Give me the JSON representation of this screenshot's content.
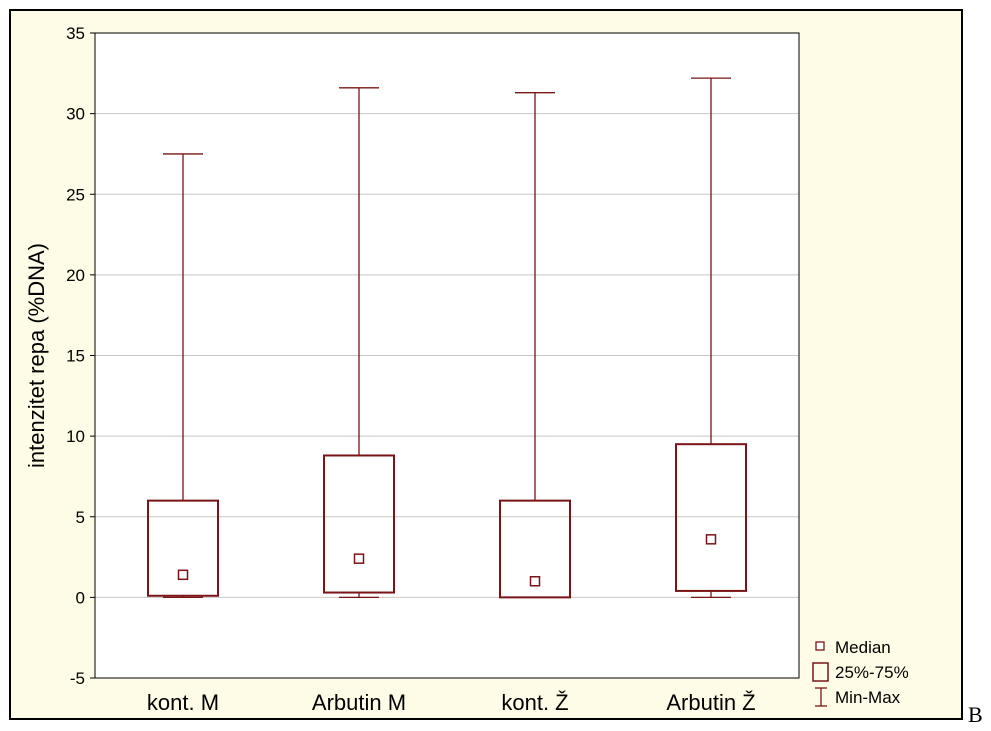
{
  "panel_letter": "B",
  "colors": {
    "box_stroke": "#7b1416",
    "axis": "#000000",
    "grid": "#c8c8c8",
    "frame_bg": "#fefce6",
    "plot_bg": "#ffffff"
  },
  "chart_data": {
    "type": "boxplot",
    "ylabel": "intenzitet repa (%DNA)",
    "xlabel": "",
    "ylim": [
      -5,
      35
    ],
    "yticks": [
      -5,
      0,
      5,
      10,
      15,
      20,
      25,
      30,
      35
    ],
    "grid": true,
    "categories": [
      "kont. M",
      "Arbutin M",
      "kont. Ž",
      "Arbutin Ž"
    ],
    "series": [
      {
        "category": "kont. M",
        "min": 0.0,
        "q1": 0.1,
        "median": 1.4,
        "q3": 6.0,
        "max": 27.5
      },
      {
        "category": "Arbutin M",
        "min": 0.0,
        "q1": 0.3,
        "median": 2.4,
        "q3": 8.8,
        "max": 31.6
      },
      {
        "category": "kont. Ž",
        "min": 0.0,
        "q1": 0.0,
        "median": 1.0,
        "q3": 6.0,
        "max": 31.3
      },
      {
        "category": "Arbutin Ž",
        "min": 0.0,
        "q1": 0.4,
        "median": 3.6,
        "q3": 9.5,
        "max": 32.2
      }
    ],
    "legend": {
      "position": "bottom-right",
      "items": [
        "Median",
        "25%-75%",
        "Min-Max"
      ]
    }
  }
}
